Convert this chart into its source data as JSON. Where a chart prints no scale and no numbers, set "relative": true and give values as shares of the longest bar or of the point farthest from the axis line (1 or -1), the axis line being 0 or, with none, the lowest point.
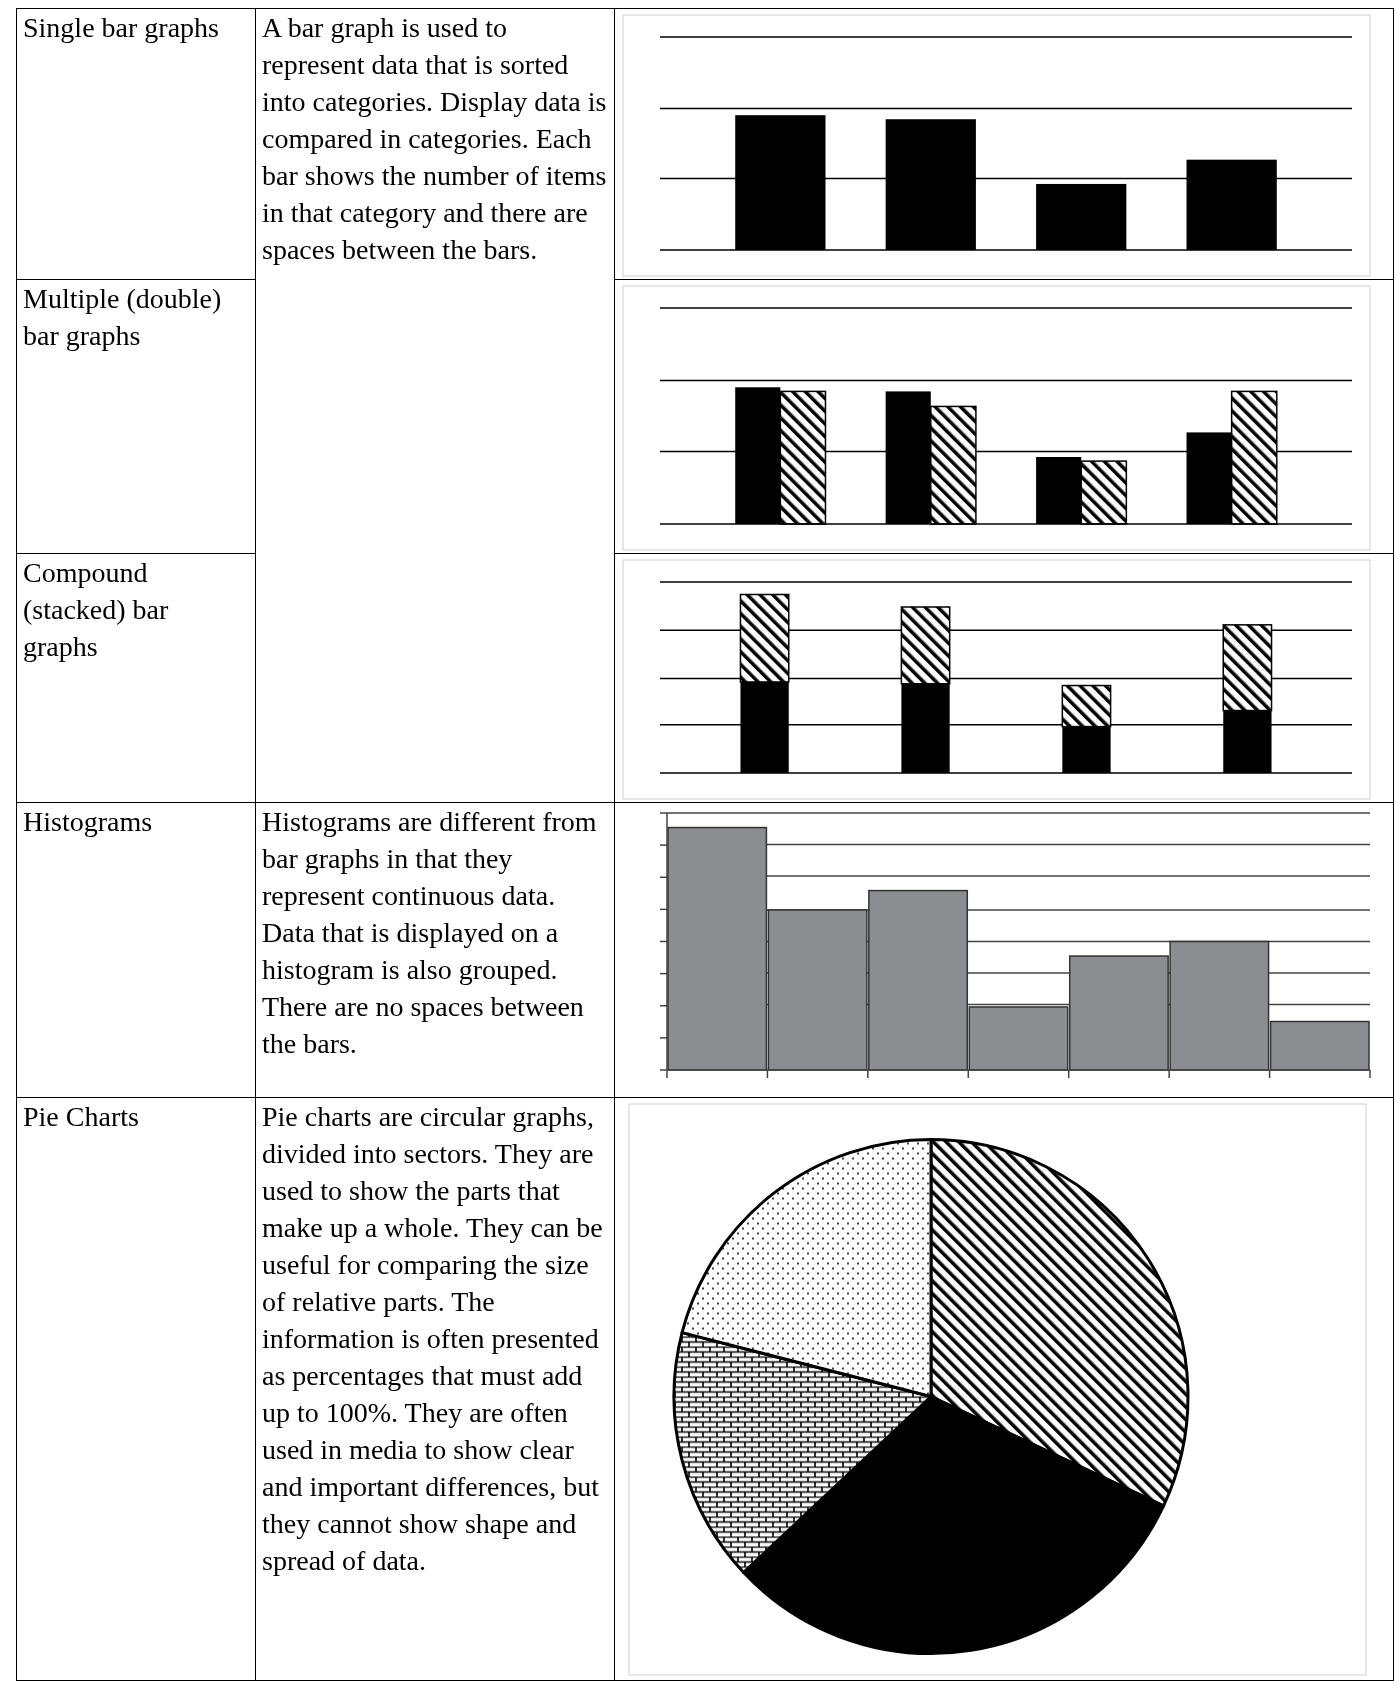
{
  "chart_data": [
    {
      "type": "bar",
      "annotations": [
        "Single bar graphs",
        "A bar graph is used to represent data that is sorted into categories. Display data is compared in categories. Each bar shows the number of items in that category and there are spaces between the bars."
      ],
      "categories": [
        null,
        null,
        null,
        null
      ],
      "values": [
        1,
        0.97,
        0.49,
        0.67
      ],
      "color": "#000000",
      "relative": true,
      "ref_lines": [
        {
          "axis": "y",
          "value": 0.53
        },
        {
          "axis": "y",
          "value": 1.05
        },
        {
          "axis": "y",
          "value": 1.58
        }
      ]
    },
    {
      "type": "bar",
      "annotations": [
        "Multiple (double) bar graphs"
      ],
      "categories": [
        null,
        null,
        null,
        null
      ],
      "relative": true,
      "ref_lines": [
        {
          "axis": "y",
          "value": 0.53
        },
        {
          "axis": "y",
          "value": 1.05
        },
        {
          "axis": "y",
          "value": 1.58
        }
      ],
      "series": [
        {
          "color": "#000000",
          "values": [
            1,
            0.97,
            0.49,
            0.67
          ]
        },
        {
          "color": "#000000",
          "values": [
            0.97,
            0.86,
            0.46,
            0.97
          ]
        }
      ]
    },
    {
      "type": "bar",
      "annotations": [
        "Compound (stacked) bar graphs"
      ],
      "categories": [
        null,
        null,
        null,
        null
      ],
      "relative": true,
      "stacked": true,
      "ref_lines": [
        {
          "axis": "y",
          "value": 0.27
        },
        {
          "axis": "y",
          "value": 0.53
        },
        {
          "axis": "y",
          "value": 0.8
        },
        {
          "axis": "y",
          "value": 1.07
        }
      ],
      "series": [
        {
          "color": "#000000",
          "values": [
            0.51,
            0.5,
            0.26,
            0.35
          ]
        },
        {
          "color": "#000000",
          "values": [
            0.49,
            0.43,
            0.23,
            0.48
          ]
        }
      ]
    },
    {
      "type": "bar",
      "annotations": [
        "Histograms",
        "Histograms are different from bar graphs in that they represent continuous data. Data that is displayed on a histogram is also grouped. There are no spaces between the bars."
      ],
      "categories": [
        null,
        null,
        null,
        null,
        null,
        null,
        null
      ],
      "values": [
        1,
        0.66,
        0.74,
        0.26,
        0.47,
        0.53,
        0.2
      ],
      "color": "#8c8d91",
      "relative": true,
      "ref_lines": [
        {
          "axis": "y",
          "value": 0.27
        },
        {
          "axis": "y",
          "value": 0.4
        },
        {
          "axis": "y",
          "value": 0.53
        },
        {
          "axis": "y",
          "value": 0.66
        },
        {
          "axis": "y",
          "value": 0.8
        },
        {
          "axis": "y",
          "value": 0.93
        },
        {
          "axis": "y",
          "value": 1.06
        }
      ]
    },
    {
      "type": "pie",
      "annotations": [
        "Pie Charts",
        "Pie charts are circular graphs, divided into sectors. They are used to show the parts that make up a whole. They can be useful for comparing the size of relative parts. The information is often presented as percentages that must add up to 100%. They are often used in media to show clear and important differences, but they cannot show shape and spread of data."
      ],
      "categories": [
        null,
        null,
        null,
        null
      ],
      "values": [
        32,
        31,
        16,
        21
      ],
      "colors": [
        "#000000",
        "#000000",
        "#000000",
        "#000000"
      ]
    }
  ]
}
